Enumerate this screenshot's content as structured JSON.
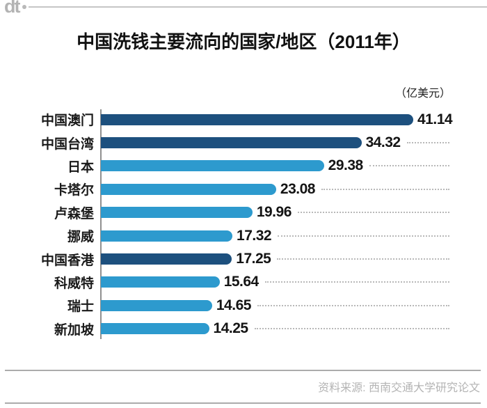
{
  "header": {
    "logo_text": "dt"
  },
  "title": "中国洗钱主要流向的国家/地区（2011年）",
  "unit_label": "（亿美元）",
  "footer": {
    "source_label": "资料来源: 西南交通大学研究论文"
  },
  "colors": {
    "bar_dark": "#1d507e",
    "bar_light": "#2d9ace",
    "leader_gray": "#b8b8b8",
    "axis_gray": "#8f8f8f",
    "rule_gray": "#ababab",
    "footer_text_gray": "#b4b4b4",
    "title_black": "#111111"
  },
  "chart_data": {
    "type": "bar",
    "orientation": "horizontal",
    "title": "中国洗钱主要流向的国家/地区（2011年）",
    "unit": "亿美元",
    "categories": [
      "中国澳门",
      "中国台湾",
      "日本",
      "卡塔尔",
      "卢森堡",
      "挪威",
      "中国香港",
      "科威特",
      "瑞士",
      "新加坡"
    ],
    "values": [
      41.14,
      34.32,
      29.38,
      23.08,
      19.96,
      17.32,
      17.25,
      15.64,
      14.65,
      14.25
    ],
    "emphasis": [
      true,
      true,
      false,
      false,
      false,
      false,
      true,
      false,
      false,
      false
    ],
    "value_label_format": "0.00",
    "xlim": [
      0,
      45
    ],
    "grid": false,
    "legend_position": "none",
    "annotations": [
      "dotted leader lines from value labels to right edge"
    ]
  }
}
